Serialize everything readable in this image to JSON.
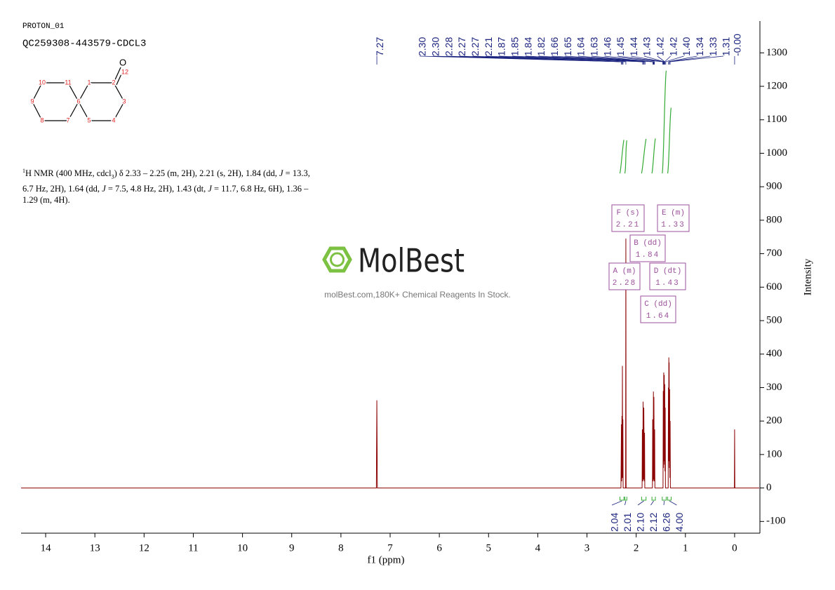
{
  "header": {
    "title": "PROTON_01",
    "sample": "QC259308-443579-CDCL3"
  },
  "structure": {
    "atoms": [
      "1",
      "2",
      "3",
      "4",
      "5",
      "6",
      "7",
      "8",
      "9",
      "10",
      "11",
      "12",
      "O"
    ]
  },
  "nmr_text": [
    "1",
    "H NMR (400 MHz, cdcl",
    "3",
    ") δ 2.33 – 2.25 (m, 2H), 2.21 (s, 2H), 1.84 (dd, ",
    "J",
    " = 13.3, 6.7 Hz, 2H), 1.64 (dd, ",
    "J",
    " = 7.5, 4.8 Hz, 2H), 1.43 (dt, ",
    "J",
    " = 11.7, 6.8 Hz, 6H), 1.36 – 1.29 (m, 4H)."
  ],
  "watermark": {
    "brand": "MolBest",
    "tagline": "molBest.com,180K+ Chemical Reagents In Stock."
  },
  "chart_data": {
    "type": "line",
    "color": "#8b0000",
    "xlabel": "f1 (ppm)",
    "ylabel": "Intensity",
    "xlim": [
      14.5,
      -0.5
    ],
    "ylim": [
      -135,
      1395
    ],
    "xticks": [
      14,
      13,
      12,
      11,
      10,
      9,
      8,
      7,
      6,
      5,
      4,
      3,
      2,
      1,
      0
    ],
    "yticks": [
      -100,
      0,
      100,
      200,
      300,
      400,
      500,
      600,
      700,
      800,
      900,
      1000,
      1100,
      1200,
      1300
    ],
    "x": [
      14.5,
      7.28,
      7.27,
      7.26,
      2.31,
      2.3,
      2.295,
      2.29,
      2.285,
      2.28,
      2.275,
      2.27,
      2.265,
      2.215,
      2.21,
      2.205,
      1.88,
      1.875,
      1.865,
      1.86,
      1.85,
      1.845,
      1.835,
      1.83,
      1.825,
      1.67,
      1.665,
      1.655,
      1.65,
      1.645,
      1.64,
      1.632,
      1.625,
      1.62,
      1.455,
      1.45,
      1.445,
      1.44,
      1.435,
      1.43,
      1.425,
      1.42,
      1.415,
      1.41,
      1.405,
      1.35,
      1.345,
      1.34,
      1.337,
      1.333,
      1.33,
      1.325,
      1.32,
      1.315,
      1.31,
      1.305,
      0.005,
      0,
      -0.005,
      -0.5
    ],
    "values": [
      0,
      0,
      262,
      0,
      0,
      190,
      20,
      215,
      30,
      365,
      30,
      205,
      0,
      0,
      745,
      0,
      0,
      175,
      20,
      258,
      25,
      240,
      20,
      165,
      0,
      0,
      205,
      20,
      288,
      25,
      272,
      20,
      175,
      0,
      0,
      290,
      60,
      345,
      80,
      338,
      70,
      310,
      50,
      240,
      0,
      0,
      300,
      80,
      390,
      90,
      375,
      60,
      295,
      30,
      200,
      0,
      0,
      175,
      0,
      0
    ],
    "peak_labels": [
      7.27,
      {
        "value": 2.3,
        "label": "2.30"
      },
      {
        "value": 2.3,
        "label": "2.30"
      },
      2.28,
      2.27,
      2.27,
      2.21,
      1.87,
      1.85,
      1.84,
      1.82,
      1.66,
      1.65,
      1.64,
      1.63,
      1.46,
      1.45,
      1.44,
      1.43,
      1.42,
      1.42,
      {
        "value": 1.4,
        "label": "1.40"
      },
      1.34,
      1.33,
      1.31,
      {
        "value": 0,
        "label": "-0.00"
      }
    ],
    "integrals": [
      {
        "x": [
          2.33,
          2.25
        ],
        "value": 2.04
      },
      {
        "x": [
          2.23,
          2.19
        ],
        "value": 2.01
      },
      {
        "x": [
          1.89,
          1.8
        ],
        "value": {
          "value": 2.1,
          "label": "2.10"
        }
      },
      {
        "x": [
          1.68,
          1.61
        ],
        "value": 2.12
      },
      {
        "x": [
          1.47,
          1.39
        ],
        "value": 6.26
      },
      {
        "x": [
          1.36,
          1.29
        ],
        "value": {
          "value": 4,
          "label": "4.00"
        }
      }
    ],
    "multiplets": [
      {
        "name": "F (s)",
        "shift": 2.21
      },
      {
        "name": "E (m)",
        "shift": 1.33
      },
      {
        "name": "B (dd)",
        "shift": 1.84
      },
      {
        "name": "A (m)",
        "shift": 2.28
      },
      {
        "name": "D (dt)",
        "shift": 1.43
      },
      {
        "name": "C (dd)",
        "shift": 1.64
      }
    ]
  }
}
